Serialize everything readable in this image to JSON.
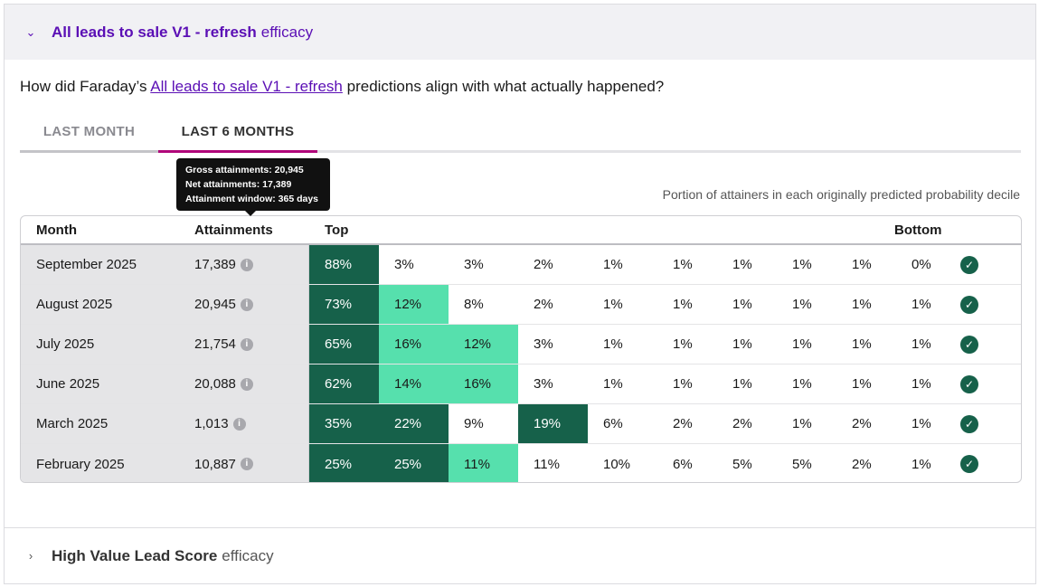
{
  "section1": {
    "title_bold": "All leads to sale V1 - refresh",
    "title_rest": "efficacy",
    "expanded": true
  },
  "question": {
    "before": "How did Faraday’s",
    "link": "All leads to sale V1 - refresh",
    "after": "predictions align with what actually happened?"
  },
  "tabs": [
    {
      "label": "LAST MONTH",
      "active": false
    },
    {
      "label": "LAST 6 MONTHS",
      "active": true
    }
  ],
  "caption": "Portion of attainers in each originally predicted probability decile",
  "table": {
    "headers": {
      "month": "Month",
      "attainments": "Attainments",
      "top": "Top",
      "bottom": "Bottom"
    },
    "rows": [
      {
        "month": "September 2025",
        "attainments": "17,389",
        "deciles": [
          "88%",
          "3%",
          "3%",
          "2%",
          "1%",
          "1%",
          "1%",
          "1%",
          "1%",
          "0%"
        ],
        "shade": [
          "dark",
          "none",
          "none",
          "none",
          "none",
          "none",
          "none",
          "none",
          "none",
          "none"
        ]
      },
      {
        "month": "August 2025",
        "attainments": "20,945",
        "deciles": [
          "73%",
          "12%",
          "8%",
          "2%",
          "1%",
          "1%",
          "1%",
          "1%",
          "1%",
          "1%"
        ],
        "shade": [
          "dark",
          "light",
          "none",
          "none",
          "none",
          "none",
          "none",
          "none",
          "none",
          "none"
        ]
      },
      {
        "month": "July 2025",
        "attainments": "21,754",
        "deciles": [
          "65%",
          "16%",
          "12%",
          "3%",
          "1%",
          "1%",
          "1%",
          "1%",
          "1%",
          "1%"
        ],
        "shade": [
          "dark",
          "light",
          "light",
          "none",
          "none",
          "none",
          "none",
          "none",
          "none",
          "none"
        ]
      },
      {
        "month": "June 2025",
        "attainments": "20,088",
        "deciles": [
          "62%",
          "14%",
          "16%",
          "3%",
          "1%",
          "1%",
          "1%",
          "1%",
          "1%",
          "1%"
        ],
        "shade": [
          "dark",
          "light",
          "light",
          "none",
          "none",
          "none",
          "none",
          "none",
          "none",
          "none"
        ]
      },
      {
        "month": "March 2025",
        "attainments": "1,013",
        "deciles": [
          "35%",
          "22%",
          "9%",
          "19%",
          "6%",
          "2%",
          "2%",
          "1%",
          "2%",
          "1%"
        ],
        "shade": [
          "dark",
          "dark",
          "none",
          "dark",
          "none",
          "none",
          "none",
          "none",
          "none",
          "none"
        ]
      },
      {
        "month": "February 2025",
        "attainments": "10,887",
        "deciles": [
          "25%",
          "25%",
          "11%",
          "11%",
          "10%",
          "6%",
          "5%",
          "5%",
          "2%",
          "1%"
        ],
        "shade": [
          "dark",
          "dark",
          "light",
          "none",
          "none",
          "none",
          "none",
          "none",
          "none",
          "none"
        ]
      }
    ]
  },
  "tooltip": {
    "lines": [
      "Gross attainments: 20,945",
      "Net attainments: 17,389",
      "Attainment window: 365 days"
    ]
  },
  "section2": {
    "title_bold": "High Value Lead Score",
    "title_rest": "efficacy",
    "expanded": false
  },
  "colors": {
    "accent": "#5b0fb5",
    "tab_active": "#b0077a",
    "dark": "#16614a",
    "light": "#56e0ad"
  }
}
